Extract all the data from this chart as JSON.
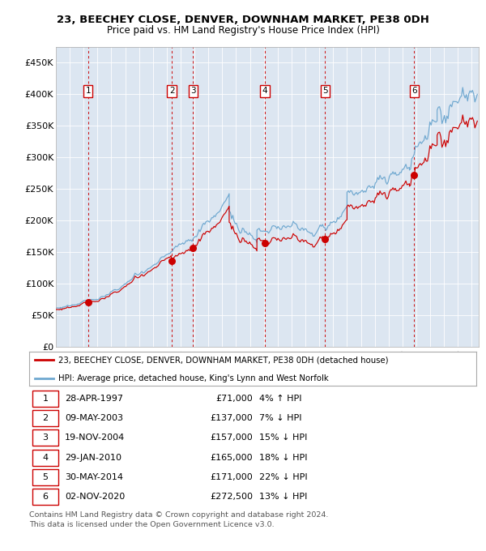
{
  "title": "23, BEECHEY CLOSE, DENVER, DOWNHAM MARKET, PE38 0DH",
  "subtitle": "Price paid vs. HM Land Registry's House Price Index (HPI)",
  "background_color": "#dce6f1",
  "plot_bg_color": "#dce6f1",
  "hpi_color": "#6fa8d0",
  "sale_color": "#cc0000",
  "sale_dot_color": "#cc0000",
  "dashed_line_color": "#cc0000",
  "ylim": [
    0,
    475000
  ],
  "yticks": [
    0,
    50000,
    100000,
    150000,
    200000,
    250000,
    300000,
    350000,
    400000,
    450000
  ],
  "ytick_labels": [
    "£0",
    "£50K",
    "£100K",
    "£150K",
    "£200K",
    "£250K",
    "£300K",
    "£350K",
    "£400K",
    "£450K"
  ],
  "xlim_start": 1995.0,
  "xlim_end": 2025.5,
  "xticks": [
    1995,
    1996,
    1997,
    1998,
    1999,
    2000,
    2001,
    2002,
    2003,
    2004,
    2005,
    2006,
    2007,
    2008,
    2009,
    2010,
    2011,
    2012,
    2013,
    2014,
    2015,
    2016,
    2017,
    2018,
    2019,
    2020,
    2021,
    2022,
    2023,
    2024,
    2025
  ],
  "sales": [
    {
      "num": 1,
      "date": "28-APR-1997",
      "year": 1997.32,
      "price": 71000,
      "pct": "4%",
      "dir": "↑"
    },
    {
      "num": 2,
      "date": "09-MAY-2003",
      "year": 2003.36,
      "price": 137000,
      "pct": "7%",
      "dir": "↓"
    },
    {
      "num": 3,
      "date": "19-NOV-2004",
      "year": 2004.89,
      "price": 157000,
      "pct": "15%",
      "dir": "↓"
    },
    {
      "num": 4,
      "date": "29-JAN-2010",
      "year": 2010.08,
      "price": 165000,
      "pct": "18%",
      "dir": "↓"
    },
    {
      "num": 5,
      "date": "30-MAY-2014",
      "year": 2014.41,
      "price": 171000,
      "pct": "22%",
      "dir": "↓"
    },
    {
      "num": 6,
      "date": "02-NOV-2020",
      "year": 2020.84,
      "price": 272500,
      "pct": "13%",
      "dir": "↓"
    }
  ],
  "legend_sale_label": "23, BEECHEY CLOSE, DENVER, DOWNHAM MARKET, PE38 0DH (detached house)",
  "legend_hpi_label": "HPI: Average price, detached house, King's Lynn and West Norfolk",
  "footer_line1": "Contains HM Land Registry data © Crown copyright and database right 2024.",
  "footer_line2": "This data is licensed under the Open Government Licence v3.0.",
  "title_fontsize": 9.5,
  "subtitle_fontsize": 8.5
}
